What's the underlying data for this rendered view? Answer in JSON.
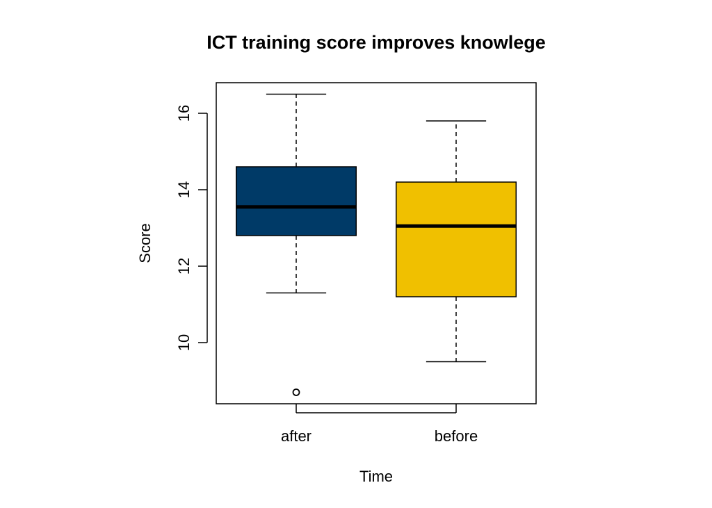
{
  "chart_data": {
    "type": "box",
    "title": "ICT training score improves knowlege",
    "xlabel": "Time",
    "ylabel": "Score",
    "categories": [
      "after",
      "before"
    ],
    "ylim": [
      8.4,
      16.8
    ],
    "yticks": [
      10,
      12,
      14,
      16
    ],
    "grid": false,
    "boxes": [
      {
        "category": "after",
        "whisker_low": 11.3,
        "q1": 12.8,
        "median": 13.55,
        "q3": 14.6,
        "whisker_high": 16.5,
        "outliers": [
          8.7
        ],
        "color": "#003a67"
      },
      {
        "category": "before",
        "whisker_low": 9.5,
        "q1": 11.2,
        "median": 13.05,
        "q3": 14.2,
        "whisker_high": 15.8,
        "outliers": [],
        "color": "#f0c000"
      }
    ]
  }
}
